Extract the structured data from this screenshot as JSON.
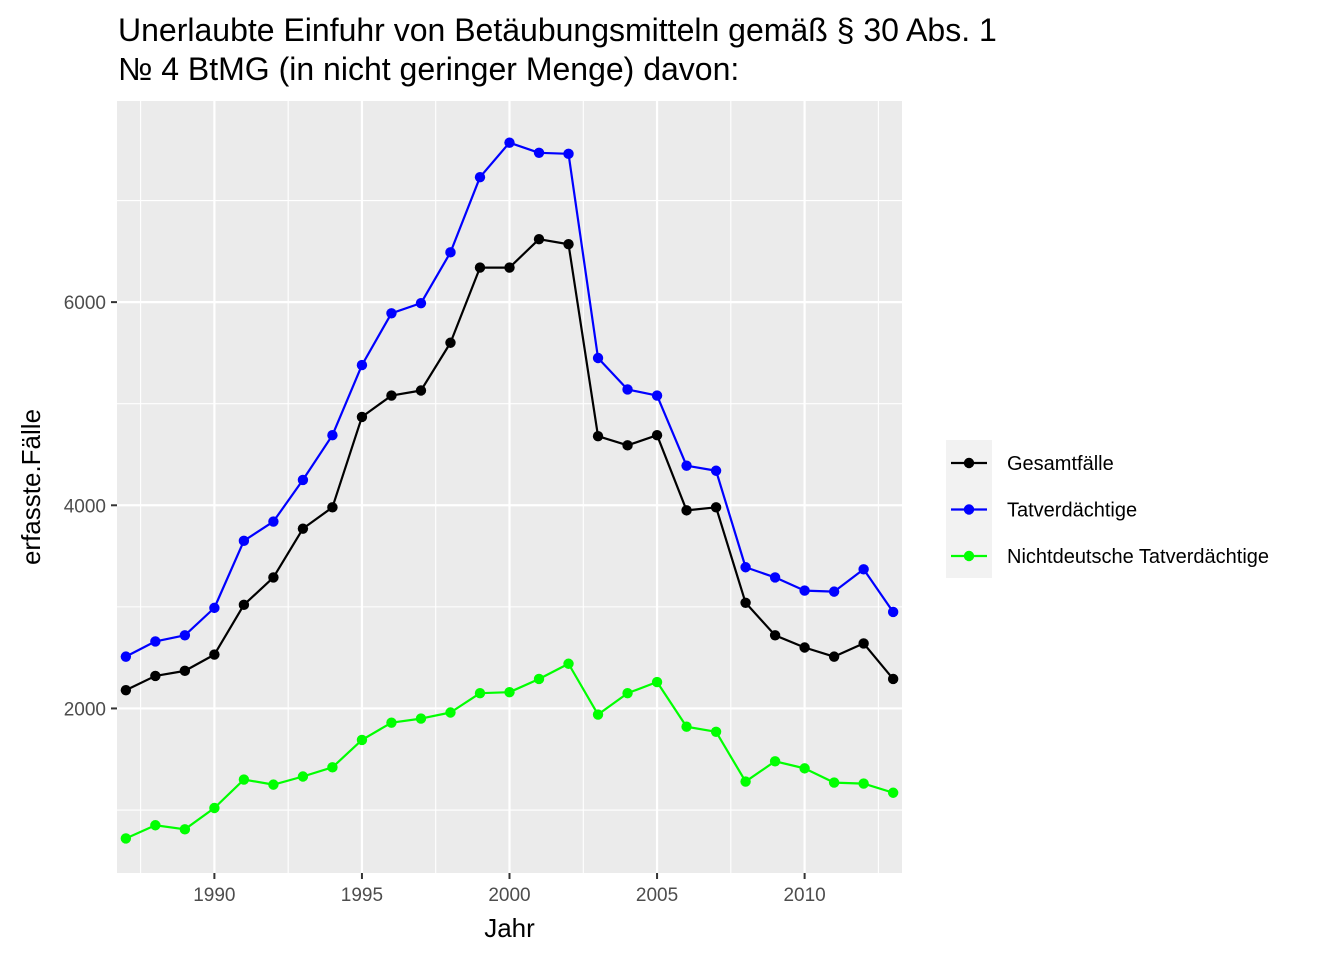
{
  "chart_data": {
    "type": "line",
    "title_lines": [
      "Unerlaubte Einfuhr von Betäubungsmitteln gemäß § 30 Abs. 1",
      "№ 4 BtMG (in nicht geringer Menge) davon:"
    ],
    "xlabel": "Jahr",
    "ylabel": "erfasste.Fälle",
    "x": [
      1987,
      1988,
      1989,
      1990,
      1991,
      1992,
      1993,
      1994,
      1995,
      1996,
      1997,
      1998,
      1999,
      2000,
      2001,
      2002,
      2003,
      2004,
      2005,
      2006,
      2007,
      2008,
      2009,
      2010,
      2011,
      2012,
      2013
    ],
    "xlim": [
      1986.7,
      2013.3
    ],
    "ylim": [
      380,
      7980
    ],
    "x_ticks": [
      1990,
      1995,
      2000,
      2005,
      2010
    ],
    "x_tick_labels": [
      "1990",
      "1995",
      "2000",
      "2005",
      "2010"
    ],
    "y_ticks": [
      2000,
      4000,
      6000
    ],
    "y_tick_labels": [
      "2000",
      "4000",
      "6000"
    ],
    "grid": true,
    "legend_position": "right",
    "series": [
      {
        "name": "Gesamtfälle",
        "color": "#000000",
        "values": [
          2180,
          2320,
          2370,
          2530,
          3020,
          3290,
          3770,
          3980,
          4870,
          5080,
          5130,
          5600,
          6340,
          6340,
          6620,
          6570,
          4680,
          4590,
          4690,
          3950,
          3980,
          3040,
          2720,
          2600,
          2510,
          2640,
          2290
        ]
      },
      {
        "name": "Tatverdächtige",
        "color": "#0000FF",
        "values": [
          2510,
          2660,
          2720,
          2990,
          3650,
          3840,
          4250,
          4690,
          5380,
          5890,
          5990,
          6490,
          7230,
          7570,
          7470,
          7460,
          5450,
          5140,
          5080,
          4390,
          4340,
          3390,
          3290,
          3160,
          3150,
          3370,
          2950
        ]
      },
      {
        "name": "Nichtdeutsche Tatverdächtige",
        "color": "#00FF00",
        "values": [
          720,
          850,
          810,
          1020,
          1300,
          1250,
          1330,
          1420,
          1690,
          1860,
          1900,
          1960,
          2150,
          2160,
          2290,
          2440,
          1940,
          2150,
          2260,
          1820,
          1770,
          1280,
          1480,
          1410,
          1270,
          1260,
          1170
        ]
      }
    ]
  }
}
